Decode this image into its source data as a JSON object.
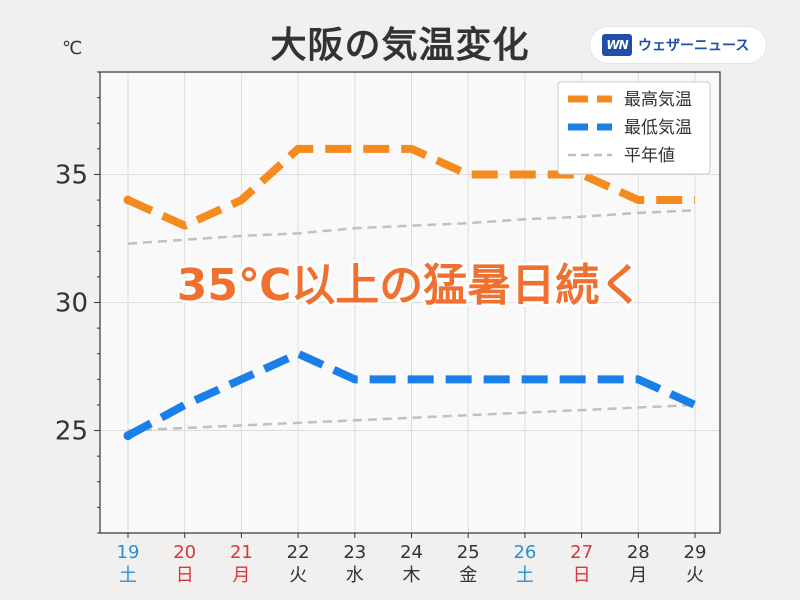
{
  "header": {
    "title": "大阪の気温変化",
    "unit": "℃",
    "logo_mark": "WN",
    "logo_text": "ウェザーニュース"
  },
  "annotation": "35℃以上の猛暑日続く",
  "colors": {
    "high": "#f58a1f",
    "low": "#1a7fe8",
    "normal": "#c0c0c0",
    "annotation": "#f07030",
    "weekday": "#333333",
    "saturday": "#2a8fd8",
    "sunday": "#d8363a"
  },
  "chart_data": {
    "type": "line",
    "ylim": [
      21,
      39
    ],
    "yticks": [
      25,
      30,
      35
    ],
    "grid": true,
    "legend_position": "top-right",
    "categories": [
      "19",
      "20",
      "21",
      "22",
      "23",
      "24",
      "25",
      "26",
      "27",
      "28",
      "29"
    ],
    "weekdays": [
      "土",
      "日",
      "月",
      "火",
      "水",
      "木",
      "金",
      "土",
      "日",
      "月",
      "火"
    ],
    "day_types": [
      "sat",
      "sun",
      "hol",
      "wd",
      "wd",
      "wd",
      "wd",
      "sat",
      "sun",
      "wd",
      "wd"
    ],
    "series": [
      {
        "name": "最高気温",
        "key": "high",
        "style": "dashed-thick",
        "values": [
          34,
          33,
          34,
          36,
          36,
          36,
          35,
          35,
          35,
          34,
          34
        ]
      },
      {
        "name": "最低気温",
        "key": "low",
        "style": "dashed-thick",
        "values": [
          24.8,
          26,
          27,
          28,
          27,
          27,
          27,
          27,
          27,
          27,
          26
        ]
      },
      {
        "name": "平年値",
        "key": "normal_high",
        "style": "dashed-thin",
        "values": [
          32.3,
          32.45,
          32.6,
          32.7,
          32.9,
          33.0,
          33.1,
          33.25,
          33.35,
          33.5,
          33.6
        ]
      },
      {
        "name": "",
        "key": "normal_low",
        "style": "dashed-thin",
        "values": [
          25.0,
          25.1,
          25.2,
          25.3,
          25.4,
          25.5,
          25.6,
          25.7,
          25.8,
          25.9,
          26.0
        ]
      }
    ]
  }
}
